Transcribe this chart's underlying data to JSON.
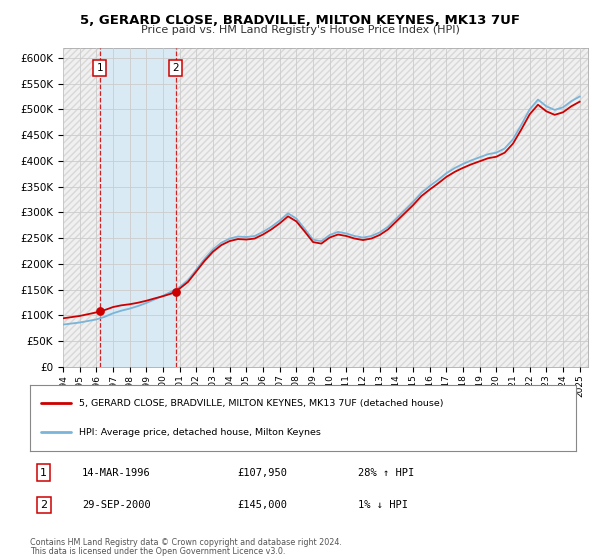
{
  "title": "5, GERARD CLOSE, BRADVILLE, MILTON KEYNES, MK13 7UF",
  "subtitle": "Price paid vs. HM Land Registry's House Price Index (HPI)",
  "xlim": [
    1994.0,
    2025.5
  ],
  "ylim": [
    0,
    620000
  ],
  "yticks": [
    0,
    50000,
    100000,
    150000,
    200000,
    250000,
    300000,
    350000,
    400000,
    450000,
    500000,
    550000,
    600000
  ],
  "ytick_labels": [
    "£0",
    "£50K",
    "£100K",
    "£150K",
    "£200K",
    "£250K",
    "£300K",
    "£350K",
    "£400K",
    "£450K",
    "£500K",
    "£550K",
    "£600K"
  ],
  "xtick_years": [
    1994,
    1995,
    1996,
    1997,
    1998,
    1999,
    2000,
    2001,
    2002,
    2003,
    2004,
    2005,
    2006,
    2007,
    2008,
    2009,
    2010,
    2011,
    2012,
    2013,
    2014,
    2015,
    2016,
    2017,
    2018,
    2019,
    2020,
    2021,
    2022,
    2023,
    2024,
    2025
  ],
  "sale1_x": 1996.2,
  "sale1_y": 107950,
  "sale2_x": 2000.75,
  "sale2_y": 145000,
  "sale1_date": "14-MAR-1996",
  "sale1_price": "£107,950",
  "sale1_hpi": "28% ↑ HPI",
  "sale2_date": "29-SEP-2000",
  "sale2_price": "£145,000",
  "sale2_hpi": "1% ↓ HPI",
  "hpi_line_color": "#7ab4d8",
  "price_line_color": "#cc0000",
  "dot_color": "#cc0000",
  "shade_color": "#daeaf5",
  "grid_color": "#cccccc",
  "bg_color": "#f0f0f0",
  "hatch_color": "#d8d8d8",
  "legend_property_label": "5, GERARD CLOSE, BRADVILLE, MILTON KEYNES, MK13 7UF (detached house)",
  "legend_hpi_label": "HPI: Average price, detached house, Milton Keynes",
  "footer1": "Contains HM Land Registry data © Crown copyright and database right 2024.",
  "footer2": "This data is licensed under the Open Government Licence v3.0.",
  "hpi_curve": [
    [
      1994.0,
      82000
    ],
    [
      1994.5,
      84000
    ],
    [
      1995.0,
      86000
    ],
    [
      1995.5,
      89000
    ],
    [
      1996.0,
      92000
    ],
    [
      1996.5,
      97000
    ],
    [
      1997.0,
      104000
    ],
    [
      1997.5,
      109000
    ],
    [
      1998.0,
      113000
    ],
    [
      1998.5,
      118000
    ],
    [
      1999.0,
      124000
    ],
    [
      1999.5,
      131000
    ],
    [
      2000.0,
      138000
    ],
    [
      2000.5,
      146000
    ],
    [
      2001.0,
      155000
    ],
    [
      2001.5,
      168000
    ],
    [
      2002.0,
      189000
    ],
    [
      2002.5,
      210000
    ],
    [
      2003.0,
      228000
    ],
    [
      2003.5,
      241000
    ],
    [
      2004.0,
      249000
    ],
    [
      2004.5,
      253000
    ],
    [
      2005.0,
      252000
    ],
    [
      2005.5,
      254000
    ],
    [
      2006.0,
      262000
    ],
    [
      2006.5,
      272000
    ],
    [
      2007.0,
      284000
    ],
    [
      2007.5,
      298000
    ],
    [
      2008.0,
      288000
    ],
    [
      2008.5,
      268000
    ],
    [
      2009.0,
      247000
    ],
    [
      2009.5,
      244000
    ],
    [
      2010.0,
      256000
    ],
    [
      2010.5,
      262000
    ],
    [
      2011.0,
      259000
    ],
    [
      2011.5,
      254000
    ],
    [
      2012.0,
      251000
    ],
    [
      2012.5,
      254000
    ],
    [
      2013.0,
      261000
    ],
    [
      2013.5,
      272000
    ],
    [
      2014.0,
      288000
    ],
    [
      2014.5,
      304000
    ],
    [
      2015.0,
      320000
    ],
    [
      2015.5,
      338000
    ],
    [
      2016.0,
      351000
    ],
    [
      2016.5,
      363000
    ],
    [
      2017.0,
      376000
    ],
    [
      2017.5,
      386000
    ],
    [
      2018.0,
      394000
    ],
    [
      2018.5,
      401000
    ],
    [
      2019.0,
      407000
    ],
    [
      2019.5,
      413000
    ],
    [
      2020.0,
      416000
    ],
    [
      2020.5,
      424000
    ],
    [
      2021.0,
      442000
    ],
    [
      2021.5,
      470000
    ],
    [
      2022.0,
      500000
    ],
    [
      2022.5,
      519000
    ],
    [
      2023.0,
      506000
    ],
    [
      2023.5,
      499000
    ],
    [
      2024.0,
      504000
    ],
    [
      2024.5,
      516000
    ],
    [
      2025.0,
      525000
    ]
  ]
}
